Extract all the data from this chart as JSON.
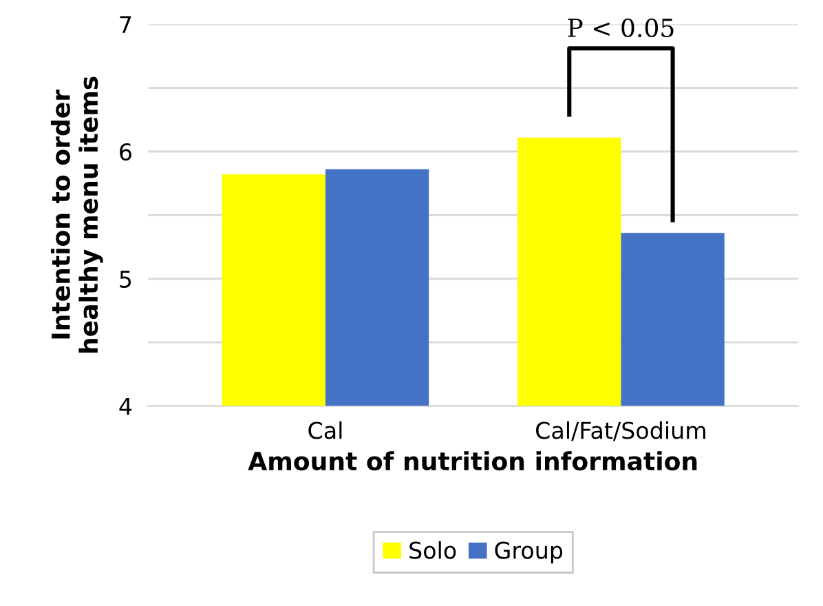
{
  "chart_data": {
    "type": "bar",
    "xlabel": "Amount of nutrition information",
    "ylabel": "Intention to order\nhealthy menu items",
    "categories": [
      "Cal",
      "Cal/Fat/Sodium"
    ],
    "series": [
      {
        "name": "Solo",
        "color": "#ffff00",
        "values": [
          5.82,
          6.11
        ]
      },
      {
        "name": "Group",
        "color": "#4472c4",
        "values": [
          5.86,
          5.36
        ]
      }
    ],
    "ylim": [
      4,
      7
    ],
    "yticks": [
      4,
      {
        "value": 4.5,
        "label": null
      },
      5,
      {
        "value": 5.5,
        "label": null
      },
      6,
      {
        "value": 6.5,
        "label": null
      },
      7
    ],
    "grid": "y",
    "legend": "bottom",
    "annotations": [
      "P < 0.05"
    ]
  }
}
